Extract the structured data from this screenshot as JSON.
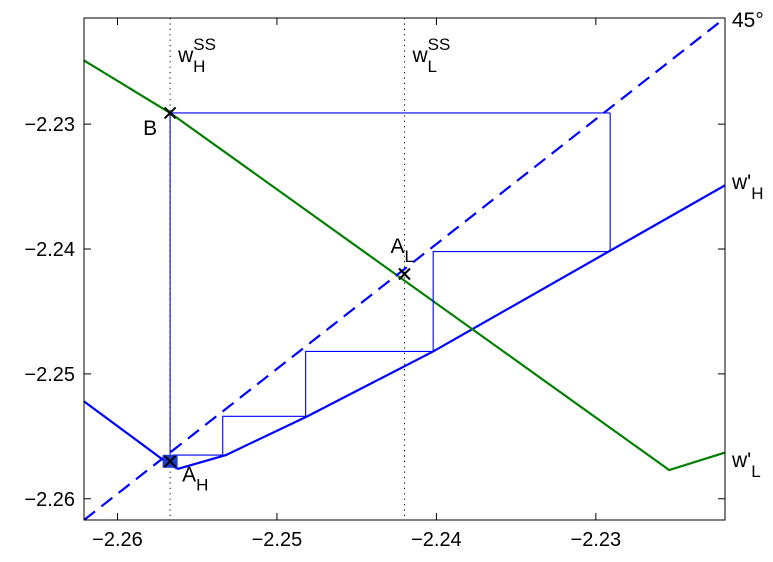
{
  "chart_data": {
    "type": "line",
    "title": "",
    "xlabel": "",
    "ylabel": "",
    "xlim": [
      -2.2621,
      -2.2219
    ],
    "ylim": [
      -2.2617,
      -2.2215
    ],
    "xticks": [
      -2.26,
      -2.25,
      -2.24,
      -2.23
    ],
    "yticks": [
      -2.26,
      -2.25,
      -2.24,
      -2.23
    ],
    "xtick_labels": [
      "−2.26",
      "−2.25",
      "−2.24",
      "−2.23"
    ],
    "ytick_labels": [
      "−2.26",
      "−2.25",
      "−2.24",
      "−2.23"
    ],
    "grid": false,
    "colors": {
      "blue": "#0000ff",
      "green": "#007f00",
      "black": "#000000",
      "square": "#1a3dcc"
    },
    "series": [
      {
        "name": "w'_H",
        "style": "solid",
        "color": "#0000ff",
        "x": [
          -2.2621,
          -2.2567,
          -2.2562,
          -2.2532,
          -2.2481,
          -2.2402,
          -2.2219
        ],
        "y": [
          -2.2522,
          -2.2573,
          -2.2576,
          -2.2565,
          -2.2534,
          -2.2482,
          -2.2349
        ]
      },
      {
        "name": "w'_L",
        "style": "solid",
        "color": "#007f00",
        "x": [
          -2.2621,
          -2.2567,
          -2.2254,
          -2.2219
        ],
        "y": [
          -2.2249,
          -2.2291,
          -2.2577,
          -2.2563
        ]
      },
      {
        "name": "45°",
        "style": "dashed",
        "color": "#0000ff",
        "x": [
          -2.2621,
          -2.2219
        ],
        "y": [
          -2.2617,
          -2.2215
        ]
      },
      {
        "name": "path",
        "style": "thin",
        "color": "#0000ff",
        "x": [
          -2.2291,
          -2.2291,
          -2.2402,
          -2.2402,
          -2.2482,
          -2.2482,
          -2.2534,
          -2.2534,
          -2.2565,
          -2.2565,
          -2.2567,
          -2.2567,
          -2.2291
        ],
        "y": [
          -2.2291,
          -2.2402,
          -2.2402,
          -2.2482,
          -2.2482,
          -2.2534,
          -2.2534,
          -2.2565,
          -2.2565,
          -2.257,
          -2.257,
          -2.2291,
          -2.2291
        ]
      }
    ],
    "vlines": [
      {
        "x": -2.2567,
        "label": "w",
        "sup": "SS",
        "sub": "H",
        "style": "dotted"
      },
      {
        "x": -2.242,
        "label": "w",
        "sup": "SS",
        "sub": "L",
        "style": "dotted"
      }
    ],
    "points": [
      {
        "name": "B",
        "x": -2.2567,
        "y": -2.2291,
        "marker": "x",
        "label": "B",
        "sub": ""
      },
      {
        "name": "A_L",
        "x": -2.242,
        "y": -2.242,
        "marker": "x",
        "label": "A",
        "sub": "L"
      },
      {
        "name": "A_H",
        "x": -2.2567,
        "y": -2.257,
        "marker": "square-x",
        "label": "A",
        "sub": "H"
      }
    ],
    "right_labels": [
      {
        "text": "45°",
        "sub": ""
      },
      {
        "text": "w'",
        "sub": "H"
      },
      {
        "text": "w'",
        "sub": "L"
      }
    ]
  }
}
